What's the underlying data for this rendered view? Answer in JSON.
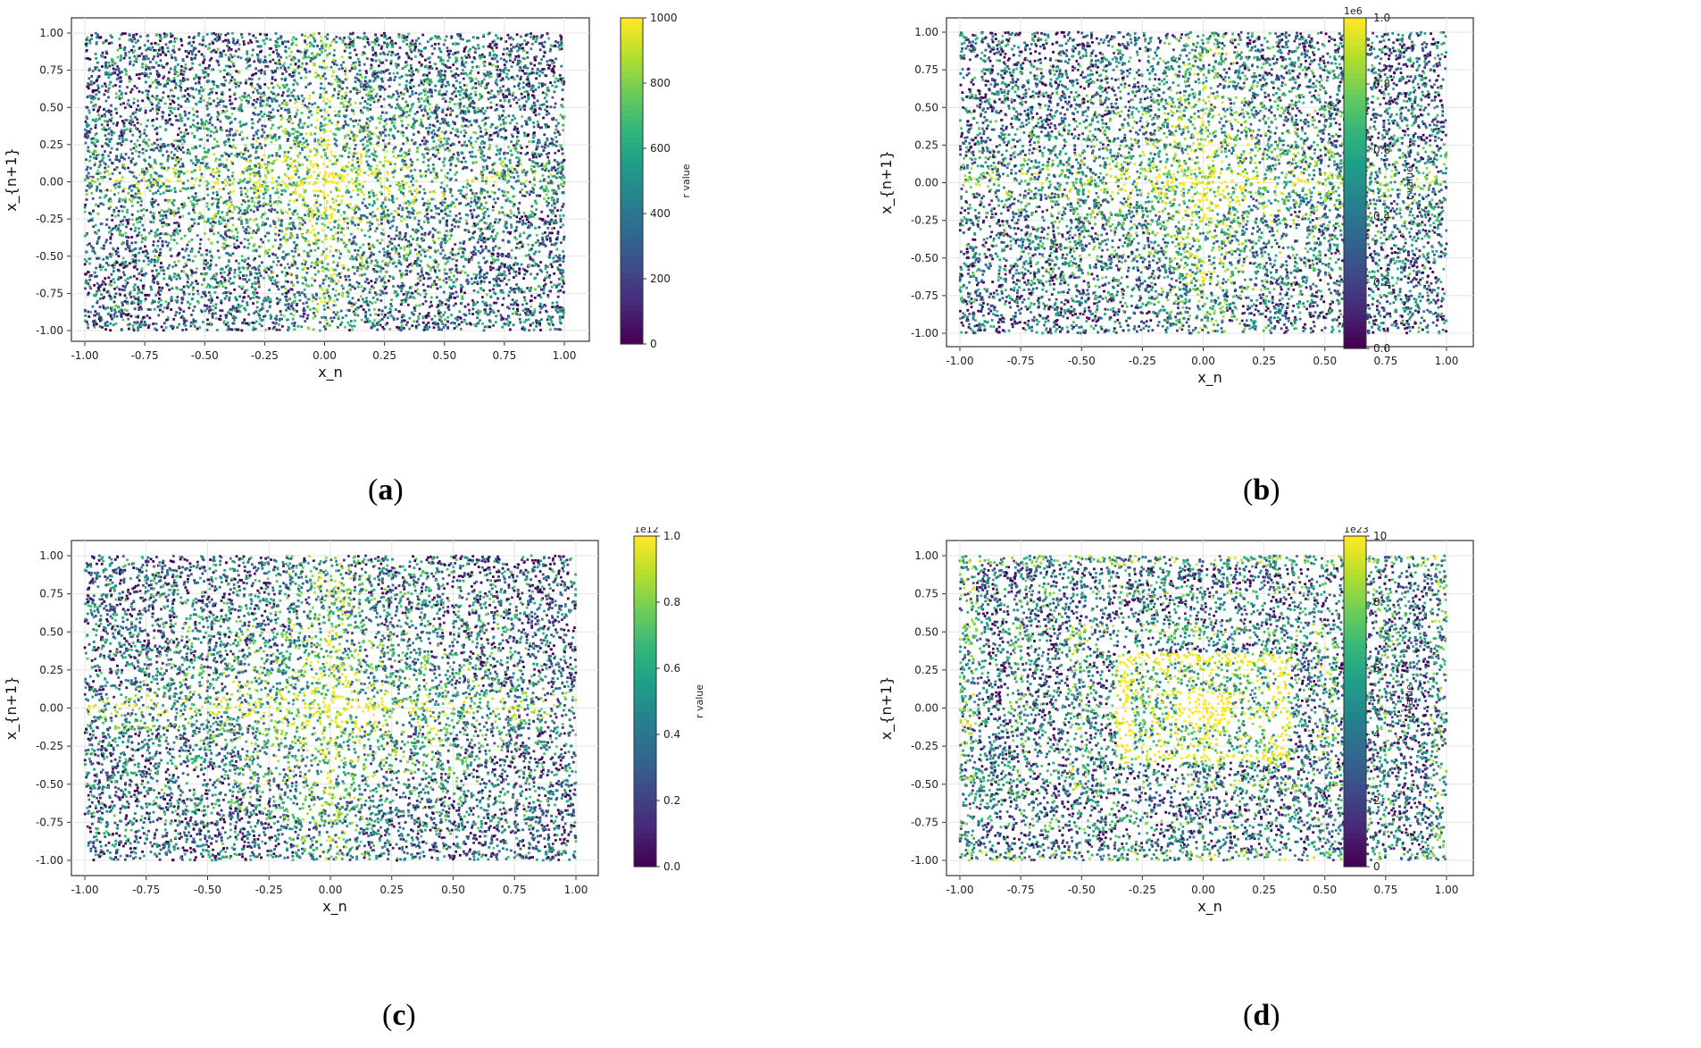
{
  "chart_data": [
    {
      "type": "scatter",
      "panel_label": "a",
      "xlabel": "x_n",
      "ylabel": "x_{n+1}",
      "xlim": [
        -1.0,
        1.0
      ],
      "ylim": [
        -1.0,
        1.0
      ],
      "xticks": [
        "-1.00",
        "-0.75",
        "-0.50",
        "-0.25",
        "0.00",
        "0.25",
        "0.50",
        "0.75",
        "1.00"
      ],
      "yticks": [
        "1.00",
        "0.75",
        "0.50",
        "0.25",
        "0.00",
        "-0.25",
        "-0.50",
        "-0.75",
        "-1.00"
      ],
      "grid": true,
      "colormap": "viridis",
      "colorbar": {
        "label": "r value",
        "min": 0,
        "max": 1000,
        "exponent": "",
        "ticks": [
          "1000",
          "800",
          "600",
          "400",
          "200",
          "0"
        ]
      },
      "pattern": "cross"
    },
    {
      "type": "scatter",
      "panel_label": "b",
      "xlabel": "x_n",
      "ylabel": "x_{n+1}",
      "xlim": [
        -1.0,
        1.0
      ],
      "ylim": [
        -1.0,
        1.0
      ],
      "xticks": [
        "-1.00",
        "-0.75",
        "-0.50",
        "-0.25",
        "0.00",
        "0.25",
        "0.50",
        "0.75",
        "1.00"
      ],
      "yticks": [
        "1.00",
        "0.75",
        "0.50",
        "0.25",
        "0.00",
        "-0.25",
        "-0.50",
        "-0.75",
        "-1.00"
      ],
      "grid": true,
      "colormap": "viridis",
      "colorbar": {
        "label": "r value",
        "min": 0,
        "max": 1.0,
        "exponent": "1e6",
        "ticks": [
          "1.0",
          "0.8",
          "0.6",
          "0.4",
          "0.2",
          "0.0"
        ]
      },
      "pattern": "cross"
    },
    {
      "type": "scatter",
      "panel_label": "c",
      "xlabel": "x_n",
      "ylabel": "x_{n+1}",
      "xlim": [
        -1.0,
        1.0
      ],
      "ylim": [
        -1.0,
        1.0
      ],
      "xticks": [
        "-1.00",
        "-0.75",
        "-0.50",
        "-0.25",
        "0.00",
        "0.25",
        "0.50",
        "0.75",
        "1.00"
      ],
      "yticks": [
        "1.00",
        "0.75",
        "0.50",
        "0.25",
        "0.00",
        "-0.25",
        "-0.50",
        "-0.75",
        "-1.00"
      ],
      "grid": true,
      "colormap": "viridis",
      "colorbar": {
        "label": "r value",
        "min": 0,
        "max": 1.0,
        "exponent": "1e12",
        "ticks": [
          "1.0",
          "0.8",
          "0.6",
          "0.4",
          "0.2",
          "0.0"
        ]
      },
      "pattern": "cross"
    },
    {
      "type": "scatter",
      "panel_label": "d",
      "xlabel": "x_n",
      "ylabel": "x_{n+1}",
      "xlim": [
        -1.0,
        1.0
      ],
      "ylim": [
        -1.0,
        1.0
      ],
      "xticks": [
        "-1.00",
        "-0.75",
        "-0.50",
        "-0.25",
        "0.00",
        "0.25",
        "0.50",
        "0.75",
        "1.00"
      ],
      "yticks": [
        "1.00",
        "0.75",
        "0.50",
        "0.25",
        "0.00",
        "-0.25",
        "-0.50",
        "-0.75",
        "-1.00"
      ],
      "grid": true,
      "colormap": "viridis",
      "colorbar": {
        "label": "r value",
        "min": 0,
        "max": 10,
        "exponent": "1e23",
        "ticks": [
          "10",
          "8",
          "6",
          "4",
          "2",
          "0"
        ]
      },
      "pattern": "nested-squares"
    }
  ],
  "colors": {
    "viridis_dark": "#440154",
    "viridis_mid": "#21918c",
    "viridis_light": "#fde725"
  }
}
